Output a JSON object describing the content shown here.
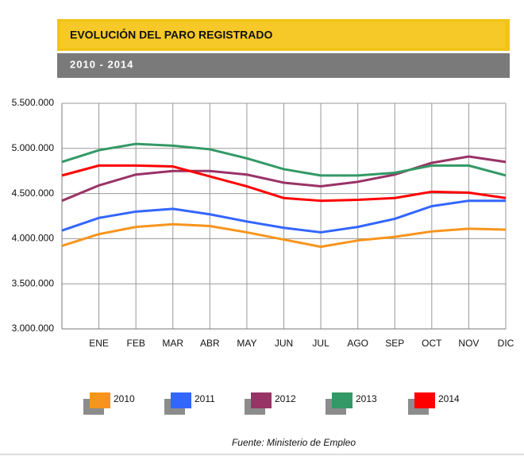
{
  "chart_data": {
    "type": "line",
    "title": "EVOLUCIÓN DEL PARO REGISTRADO",
    "subtitle": "2010 - 2014",
    "source": "Fuente: Ministerio de Empleo",
    "categories": [
      null,
      "ENE",
      "FEB",
      "MAR",
      "ABR",
      "MAY",
      "JUN",
      "JUL",
      "AGO",
      "SEP",
      "OCT",
      "NOV",
      "DIC"
    ],
    "series": [
      {
        "name": "2010",
        "color": "#f7941d",
        "values": [
          3920000,
          4050000,
          4130000,
          4160000,
          4140000,
          4070000,
          3990000,
          3910000,
          3980000,
          4020000,
          4080000,
          4110000,
          4100000
        ]
      },
      {
        "name": "2011",
        "color": "#3366ff",
        "values": [
          4090000,
          4230000,
          4300000,
          4330000,
          4270000,
          4190000,
          4120000,
          4070000,
          4130000,
          4220000,
          4360000,
          4420000,
          4420000
        ]
      },
      {
        "name": "2012",
        "color": "#993366",
        "values": [
          4420000,
          4590000,
          4710000,
          4750000,
          4750000,
          4710000,
          4620000,
          4580000,
          4630000,
          4710000,
          4840000,
          4910000,
          4850000
        ]
      },
      {
        "name": "2013",
        "color": "#339966",
        "values": [
          4850000,
          4980000,
          5050000,
          5030000,
          4990000,
          4890000,
          4770000,
          4700000,
          4700000,
          4730000,
          4810000,
          4810000,
          4700000
        ]
      },
      {
        "name": "2014",
        "color": "#ff0000",
        "values": [
          4700000,
          4810000,
          4810000,
          4800000,
          4690000,
          4580000,
          4450000,
          4420000,
          4430000,
          4450000,
          4520000,
          4510000,
          4450000
        ]
      }
    ],
    "ylim": [
      3000000,
      5500000
    ],
    "yticks": [
      {
        "value": 3000000,
        "label": "3.000.000"
      },
      {
        "value": 3500000,
        "label": "3.500.000"
      },
      {
        "value": 4000000,
        "label": "4.000.000"
      },
      {
        "value": 4500000,
        "label": "4.500.000"
      },
      {
        "value": 5000000,
        "label": "5.000.000"
      },
      {
        "value": 5500000,
        "label": "5.500.000"
      }
    ],
    "grid": true
  }
}
